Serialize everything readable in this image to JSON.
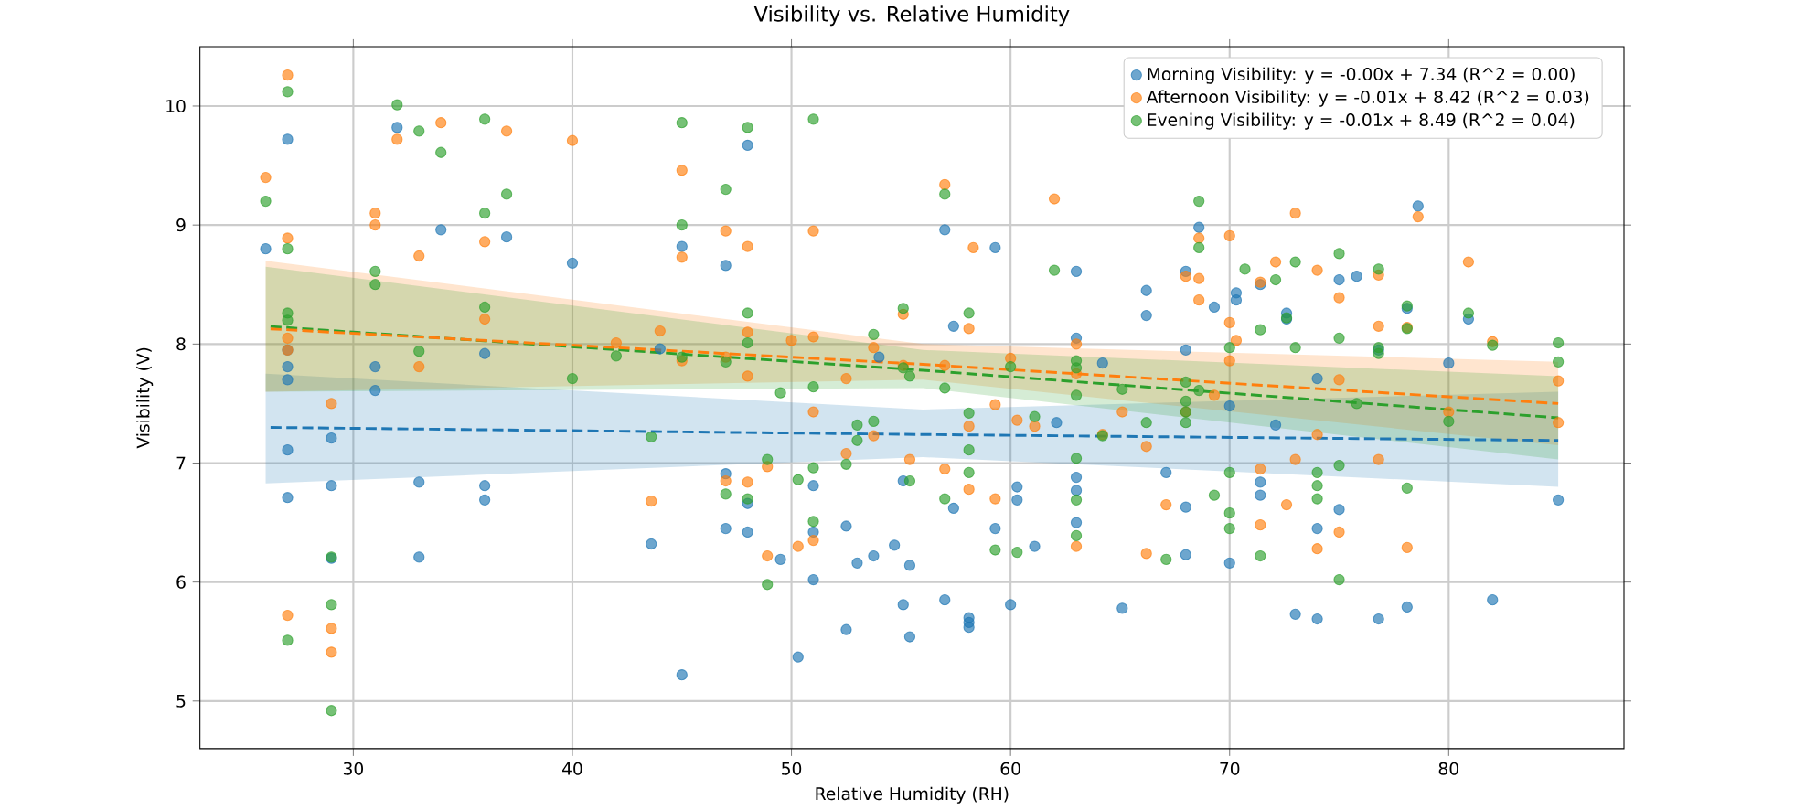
{
  "chart_data": {
    "type": "scatter",
    "title": "Visibility vs. Relative Humidity",
    "xlabel": "Relative Humidity (RH)",
    "ylabel": "Visibility (V)",
    "xlim": [
      23,
      88
    ],
    "ylim": [
      4.6,
      10.5
    ],
    "xticks": [
      30,
      40,
      50,
      60,
      70,
      80
    ],
    "yticks": [
      5,
      6,
      7,
      8,
      9,
      10
    ],
    "grid": true,
    "legend": "top right",
    "series": [
      {
        "name": "Morning Visibility: y = -0.00x + 7.34 (R^2 = 0.00)",
        "marker": "circle",
        "color": "#1f77b4",
        "x": [
          26,
          27,
          27,
          27,
          27,
          27,
          27,
          29,
          29,
          29,
          31,
          31,
          32,
          33,
          33,
          34,
          36,
          36,
          36,
          37,
          40,
          43.6,
          44,
          45,
          45,
          47,
          47,
          47,
          48,
          48,
          48,
          49.5,
          50.3,
          51,
          51,
          51,
          52.5,
          52.5,
          53,
          53.75,
          54,
          54.7,
          55.1,
          55.1,
          55.4,
          55.4,
          57,
          57,
          57.4,
          57.4,
          58.1,
          58.1,
          58.1,
          59.3,
          59.3,
          60,
          60.3,
          60.3,
          61.1,
          62.1,
          63,
          63,
          63,
          63,
          63,
          64.2,
          65.1,
          66.2,
          66.2,
          67.1,
          68,
          68,
          68,
          68,
          68.6,
          69.3,
          70,
          70,
          70.3,
          70.3,
          71.4,
          71.4,
          71.4,
          72.1,
          72.6,
          72.6,
          73,
          74,
          74,
          74,
          75,
          75,
          75.8,
          76.8,
          76.8,
          78.1,
          78.1,
          78.6,
          80,
          80.9,
          82,
          85
        ],
        "values": [
          8.8,
          9.72,
          7.95,
          7.81,
          7.7,
          7.11,
          6.71,
          7.21,
          6.81,
          6.2,
          7.81,
          7.61,
          9.82,
          6.84,
          6.21,
          8.96,
          7.92,
          6.81,
          6.69,
          8.9,
          8.68,
          6.32,
          7.96,
          8.82,
          5.22,
          8.66,
          6.91,
          6.45,
          9.67,
          6.66,
          6.42,
          6.19,
          5.37,
          6.81,
          6.42,
          6.02,
          6.47,
          5.6,
          6.16,
          6.22,
          7.89,
          6.31,
          5.81,
          6.85,
          6.14,
          5.54,
          8.96,
          5.85,
          8.15,
          6.62,
          5.7,
          5.66,
          5.62,
          8.81,
          6.45,
          5.81,
          6.69,
          6.8,
          6.3,
          7.34,
          8.61,
          8.05,
          6.88,
          6.77,
          6.5,
          7.84,
          5.78,
          8.45,
          8.24,
          6.92,
          8.61,
          7.95,
          6.63,
          6.23,
          8.98,
          8.31,
          7.48,
          6.16,
          8.43,
          8.37,
          8.5,
          6.84,
          6.73,
          7.32,
          8.26,
          8.21,
          5.73,
          7.71,
          6.45,
          5.69,
          8.54,
          6.61,
          8.57,
          7.95,
          5.69,
          8.3,
          5.79,
          9.16,
          7.84,
          8.21,
          5.85,
          6.69
        ]
      },
      {
        "name": "Afternoon Visibility: y = -0.01x + 8.42 (R^2 = 0.03)",
        "marker": "circle",
        "color": "#ff7f0e",
        "x": [
          26,
          27,
          27,
          27,
          27,
          27,
          29,
          29,
          29,
          31,
          31,
          32,
          33,
          33,
          34,
          36,
          36,
          37,
          40,
          42,
          43.6,
          44,
          45,
          45,
          45,
          47,
          47,
          47,
          48,
          48,
          48,
          48,
          48.9,
          48.9,
          50,
          50.3,
          51,
          51,
          51,
          51,
          52.5,
          52.5,
          53.75,
          53.75,
          55.1,
          55.1,
          55.4,
          57,
          57,
          57,
          58.1,
          58.1,
          58.1,
          58.3,
          59.3,
          59.3,
          60,
          60.3,
          61.1,
          62,
          63,
          63,
          63,
          64.2,
          65.1,
          66.2,
          66.2,
          67.1,
          68,
          68,
          68.6,
          68.6,
          68.6,
          69.3,
          70,
          70,
          70,
          70.3,
          71.4,
          71.4,
          71.4,
          72.1,
          72.6,
          73,
          73,
          74,
          74,
          74,
          75,
          75,
          75,
          76.8,
          76.8,
          76.8,
          78.1,
          78.1,
          78.6,
          80,
          80.9,
          82,
          85,
          85
        ],
        "values": [
          9.4,
          10.26,
          8.89,
          8.05,
          7.95,
          5.72,
          7.5,
          5.61,
          5.41,
          9.1,
          9.0,
          9.72,
          8.74,
          7.81,
          9.86,
          8.86,
          8.21,
          9.79,
          9.71,
          8.01,
          6.68,
          8.11,
          9.46,
          8.73,
          7.86,
          8.95,
          7.89,
          6.85,
          8.82,
          8.1,
          7.73,
          6.84,
          6.97,
          6.22,
          8.03,
          6.3,
          8.95,
          8.06,
          7.43,
          6.35,
          7.71,
          7.08,
          7.97,
          7.23,
          8.25,
          7.82,
          7.03,
          9.34,
          7.82,
          6.95,
          8.13,
          7.31,
          6.78,
          8.81,
          6.7,
          7.49,
          7.88,
          7.36,
          7.31,
          9.22,
          8.0,
          7.75,
          6.3,
          7.24,
          7.43,
          7.14,
          6.24,
          6.65,
          8.57,
          7.43,
          8.55,
          8.37,
          8.89,
          7.57,
          8.91,
          8.18,
          7.86,
          8.03,
          8.52,
          6.95,
          6.48,
          8.69,
          6.65,
          9.1,
          7.03,
          8.62,
          7.24,
          6.28,
          8.39,
          7.7,
          6.42,
          8.58,
          8.15,
          7.03,
          8.14,
          6.29,
          9.07,
          7.43,
          8.69,
          8.02,
          7.69,
          7.34
        ]
      },
      {
        "name": "Evening Visibility: y = -0.01x + 8.49 (R^2 = 0.04)",
        "marker": "circle",
        "color": "#2ca02c",
        "x": [
          26,
          27,
          27,
          27,
          27,
          27,
          29,
          29,
          29,
          31,
          31,
          32,
          33,
          33,
          34,
          36,
          36,
          36,
          37,
          40,
          42,
          43.6,
          45,
          45,
          45,
          47,
          47,
          47,
          48,
          48,
          48,
          48,
          48.9,
          48.9,
          49.5,
          50.3,
          51,
          51,
          51,
          51,
          52.5,
          53,
          53,
          53.75,
          53.75,
          55.1,
          55.1,
          55.4,
          55.4,
          57,
          57,
          57,
          58.1,
          58.1,
          58.1,
          58.1,
          59.3,
          60,
          60.3,
          61.1,
          62,
          63,
          63,
          63,
          63,
          63,
          63,
          64.2,
          65.1,
          66.2,
          67.1,
          68,
          68,
          68,
          68,
          68.6,
          68.6,
          68.6,
          69.3,
          70,
          70,
          70,
          70,
          70.7,
          71.4,
          71.4,
          72.1,
          72.6,
          73,
          73,
          74,
          74,
          74,
          75,
          75,
          75,
          75,
          75.8,
          76.8,
          76.8,
          76.8,
          78.1,
          78.1,
          78.1,
          80,
          80.9,
          82,
          85,
          85
        ],
        "values": [
          9.2,
          10.12,
          8.8,
          8.26,
          8.2,
          5.51,
          6.21,
          5.81,
          4.92,
          8.61,
          8.5,
          10.01,
          9.79,
          7.94,
          9.61,
          9.89,
          9.1,
          8.31,
          9.26,
          7.71,
          7.9,
          7.22,
          9.86,
          9.0,
          7.89,
          9.3,
          7.85,
          6.74,
          9.82,
          8.26,
          8.01,
          6.7,
          7.03,
          5.98,
          7.59,
          6.86,
          9.89,
          7.64,
          6.96,
          6.51,
          6.99,
          7.32,
          7.19,
          8.08,
          7.35,
          8.3,
          7.8,
          6.85,
          7.73,
          9.26,
          7.63,
          6.7,
          8.26,
          7.42,
          7.11,
          6.92,
          6.27,
          7.81,
          6.25,
          7.39,
          8.62,
          7.86,
          7.8,
          7.57,
          7.04,
          6.69,
          6.39,
          7.23,
          7.62,
          7.34,
          6.19,
          7.68,
          7.52,
          7.43,
          7.34,
          8.81,
          9.2,
          7.61,
          6.73,
          7.97,
          6.92,
          6.58,
          6.45,
          8.63,
          8.12,
          6.22,
          8.54,
          8.22,
          8.69,
          7.97,
          6.92,
          6.81,
          6.7,
          8.76,
          8.05,
          6.98,
          6.02,
          7.5,
          8.63,
          7.97,
          7.92,
          8.32,
          8.13,
          6.79,
          7.35,
          8.26,
          7.99,
          8.01,
          7.85
        ]
      },
      {
        "type": "line",
        "marker": "none",
        "line_style": "dashed",
        "color": "#1f77b4",
        "x": [
          26,
          56,
          85
        ],
        "values": [
          7.3,
          7.24,
          7.19
        ],
        "lower": [
          6.83,
          7.05,
          6.8
        ],
        "upper": [
          7.75,
          7.45,
          7.6
        ]
      },
      {
        "type": "line",
        "marker": "none",
        "line_style": "dashed",
        "color": "#ff7f0e",
        "x": [
          26,
          56,
          85
        ],
        "values": [
          8.13,
          7.83,
          7.5
        ],
        "lower": [
          7.6,
          7.7,
          7.15
        ],
        "upper": [
          8.7,
          8.0,
          7.85
        ]
      },
      {
        "type": "line",
        "marker": "none",
        "line_style": "dashed",
        "color": "#2ca02c",
        "x": [
          26,
          56,
          85
        ],
        "values": [
          8.15,
          7.78,
          7.38
        ],
        "lower": [
          7.6,
          7.63,
          7.03
        ],
        "upper": [
          8.65,
          7.95,
          7.73
        ]
      }
    ]
  }
}
